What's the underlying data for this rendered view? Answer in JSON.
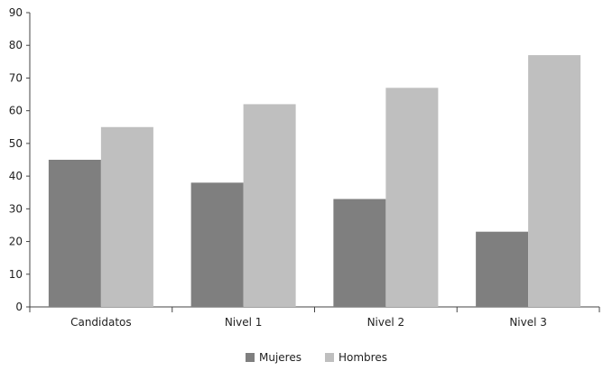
{
  "chart_data": {
    "type": "bar",
    "categories": [
      "Candidatos",
      "Nivel 1",
      "Nivel 2",
      "Nivel 3"
    ],
    "series": [
      {
        "name": "Mujeres",
        "values": [
          45,
          38,
          33,
          23
        ],
        "color": "#7f7f7f"
      },
      {
        "name": "Hombres",
        "values": [
          55,
          62,
          67,
          77
        ],
        "color": "#bfbfbf"
      }
    ],
    "ylim": [
      0,
      90
    ],
    "yticks": [
      0,
      10,
      20,
      30,
      40,
      50,
      60,
      70,
      80,
      90
    ],
    "grid": false,
    "legend_position": "bottom-center"
  }
}
